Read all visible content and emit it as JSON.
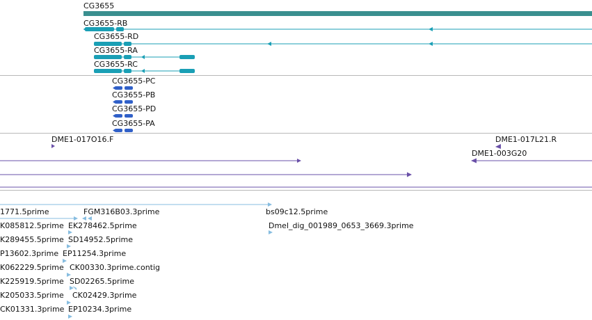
{
  "colors": {
    "gene": "#3a8f8f",
    "transcript": "#1a9fb5",
    "protein": "#3060c8",
    "clone": "#6a50a8",
    "est": "#87bde0",
    "separator": "#b8b8b8"
  },
  "gene_track": {
    "gene_label": "CG3655",
    "transcripts": [
      {
        "label": "CG3655-RB"
      },
      {
        "label": "CG3655-RD"
      },
      {
        "label": "CG3655-RA"
      },
      {
        "label": "CG3655-RC"
      }
    ]
  },
  "protein_track": {
    "proteins": [
      {
        "label": "CG3655-PC"
      },
      {
        "label": "CG3655-PB"
      },
      {
        "label": "CG3655-PD"
      },
      {
        "label": "CG3655-PA"
      }
    ]
  },
  "clone_track": {
    "clones": [
      {
        "label": "DME1-017O16.F"
      },
      {
        "label": "DME1-017L21.R"
      },
      {
        "label": "DME1-003G20"
      }
    ]
  },
  "est_track": {
    "ests": [
      {
        "label": "1771.5prime"
      },
      {
        "label": "FGM316B03.3prime"
      },
      {
        "label": "bs09c12.5prime"
      },
      {
        "label": "K085812.5prime"
      },
      {
        "label": "EK278462.5prime"
      },
      {
        "label": "Dmel_dig_001989_0653_3669.3prime"
      },
      {
        "label": "K289455.5prime"
      },
      {
        "label": "SD14952.5prime"
      },
      {
        "label": "P13602.3prime"
      },
      {
        "label": "EP11254.3prime"
      },
      {
        "label": "K062229.5prime"
      },
      {
        "label": "CK00330.3prime.contig"
      },
      {
        "label": "K225919.5prime"
      },
      {
        "label": "SD02265.5prime"
      },
      {
        "label": "K205033.5prime"
      },
      {
        "label": "CK02429.3prime"
      },
      {
        "label": "CK01331.3prime"
      },
      {
        "label": "EP10234.3prime"
      }
    ]
  }
}
